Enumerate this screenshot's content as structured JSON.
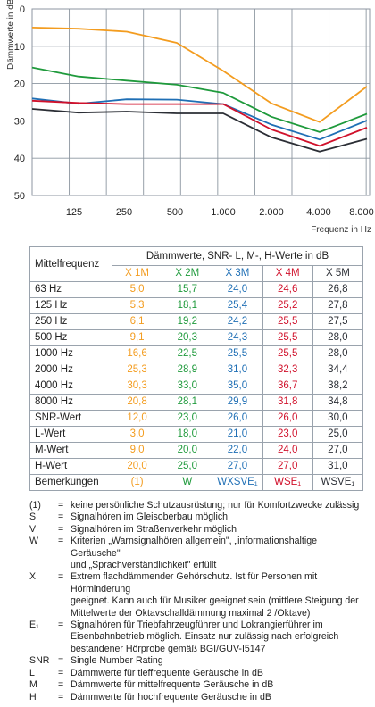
{
  "chart_data": {
    "type": "line",
    "ylabel": "Dämmwerte in dB",
    "xlabel": "Frequenz in Hz",
    "y_ticks": [
      "0",
      "10",
      "20",
      "30",
      "40",
      "50"
    ],
    "x_ticks": [
      "125",
      "250",
      "500",
      "1.000",
      "2.000",
      "4.000",
      "8.000"
    ],
    "ylim": [
      0,
      50
    ],
    "y_inverted": true,
    "categories": [
      "63",
      "125",
      "250",
      "500",
      "1.000",
      "2.000",
      "4.000",
      "8.000"
    ],
    "series": [
      {
        "name": "X 1M",
        "color": "#f39c1f",
        "values": [
          5.0,
          5.3,
          6.1,
          9.1,
          16.6,
          25.3,
          30.3,
          20.8
        ]
      },
      {
        "name": "X 2M",
        "color": "#1f9a3c",
        "values": [
          15.7,
          18.1,
          19.2,
          20.3,
          22.5,
          28.9,
          33.0,
          28.1
        ]
      },
      {
        "name": "X 3M",
        "color": "#1f6fb5",
        "values": [
          24.0,
          25.4,
          24.2,
          24.3,
          25.5,
          31.0,
          35.0,
          29.9
        ]
      },
      {
        "name": "X 4M",
        "color": "#d0112b",
        "values": [
          24.6,
          25.2,
          25.5,
          25.5,
          25.5,
          32.3,
          36.7,
          31.8
        ]
      },
      {
        "name": "X 5M",
        "color": "#2b2e35",
        "values": [
          26.8,
          27.8,
          27.5,
          28.0,
          28.0,
          34.4,
          38.2,
          34.8
        ]
      }
    ],
    "grid": true
  },
  "table": {
    "corner_label": "Mittelfrequenz",
    "title": "Dämmwerte, SNR- L, M-, H-Werte in dB",
    "columns": [
      {
        "label": "X 1M",
        "color": "#f39c1f"
      },
      {
        "label": "X 2M",
        "color": "#1f9a3c"
      },
      {
        "label": "X 3M",
        "color": "#1f6fb5"
      },
      {
        "label": "X 4M",
        "color": "#d0112b"
      },
      {
        "label": "X 5M",
        "color": "#2b2e35"
      }
    ],
    "rows": [
      {
        "label": "63 Hz",
        "cells": [
          "5,0",
          "15,7",
          "24,0",
          "24,6",
          "26,8"
        ]
      },
      {
        "label": "125 Hz",
        "cells": [
          "5,3",
          "18,1",
          "25,4",
          "25,2",
          "27,8"
        ]
      },
      {
        "label": "250 Hz",
        "cells": [
          "6,1",
          "19,2",
          "24,2",
          "25,5",
          "27,5"
        ]
      },
      {
        "label": "500 Hz",
        "cells": [
          "9,1",
          "20,3",
          "24,3",
          "25,5",
          "28,0"
        ]
      },
      {
        "label": "1000 Hz",
        "cells": [
          "16,6",
          "22,5",
          "25,5",
          "25,5",
          "28,0"
        ]
      },
      {
        "label": "2000 Hz",
        "cells": [
          "25,3",
          "28,9",
          "31,0",
          "32,3",
          "34,4"
        ]
      },
      {
        "label": "4000 Hz",
        "cells": [
          "30,3",
          "33,0",
          "35,0",
          "36,7",
          "38,2"
        ]
      },
      {
        "label": "8000 Hz",
        "cells": [
          "20,8",
          "28,1",
          "29,9",
          "31,8",
          "34,8"
        ]
      },
      {
        "label": "SNR-Wert",
        "cells": [
          "12,0",
          "23,0",
          "26,0",
          "26,0",
          "30,0"
        ]
      },
      {
        "label": "L-Wert",
        "cells": [
          "3,0",
          "18,0",
          "21,0",
          "23,0",
          "25,0"
        ]
      },
      {
        "label": "M-Wert",
        "cells": [
          "9,0",
          "20,0",
          "22,0",
          "24,0",
          "27,0"
        ]
      },
      {
        "label": "H-Wert",
        "cells": [
          "20,0",
          "25,0",
          "27,0",
          "27,0",
          "31,0"
        ]
      },
      {
        "label": "Bemerkungen",
        "cells": [
          "(1)",
          "W",
          "WXSVE₁",
          "WSE₁",
          "WSVE₁"
        ]
      }
    ]
  },
  "legend": [
    {
      "key": "(1)",
      "eq": "=",
      "text": "keine persönliche Schutzausrüstung; nur für Komfortzwecke zulässig"
    },
    {
      "key": "S",
      "eq": "=",
      "text": "Signalhören im Gleisoberbau möglich"
    },
    {
      "key": "V",
      "eq": "=",
      "text": "Signalhören im Straßenverkehr möglich"
    },
    {
      "key": "W",
      "eq": "=",
      "text": "Kriterien „Warnsignalhören allgemein\", „informationshaltige Geräusche\"\nund „Sprachverständlichkeit\" erfüllt"
    },
    {
      "key": "X",
      "eq": "=",
      "text": "Extrem flachdämmender Gehörschutz. Ist für Personen mit Hörminderung\ngeeignet. Kann auch für Musiker geeignet sein (mittlere Steigung der\nMittelwerte der Oktavschalldämmung maximal 2 /Oktave)"
    },
    {
      "key": "E₁",
      "eq": "=",
      "text": "Signalhören für Triebfahrzeugführer und Lokrangierführer im\nEisenbahnbetrieb möglich. Einsatz nur zulässig nach erfolgreich\nbestandener Hörprobe gemäß BGI/GUV-I5147"
    },
    {
      "key": "SNR",
      "eq": "=",
      "text": "Single Number Rating"
    },
    {
      "key": "L",
      "eq": "=",
      "text": "Dämmwerte für tieffrequente Geräusche in dB"
    },
    {
      "key": "M",
      "eq": "=",
      "text": "Dämmwerte für mittelfrequente Geräusche in dB"
    },
    {
      "key": "H",
      "eq": "=",
      "text": "Dämmwerte für hochfrequente Geräusche in dB"
    }
  ]
}
